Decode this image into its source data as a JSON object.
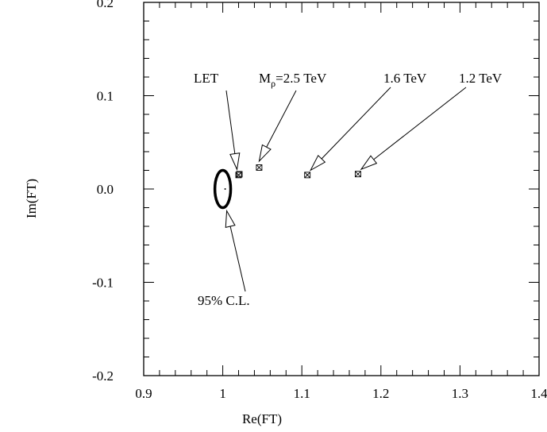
{
  "chart_data": {
    "type": "scatter",
    "xlabel": "Re(FT)",
    "ylabel": "Im(FT)",
    "xlim": [
      0.9,
      1.4
    ],
    "ylim": [
      -0.2,
      0.2
    ],
    "x_ticks": [
      "0.9",
      "1",
      "1.1",
      "1.2",
      "1.3",
      "1.4"
    ],
    "y_ticks": [
      "-0.2",
      "-0.1",
      "0.0",
      "0.1",
      "0.2"
    ],
    "grid": false,
    "points": [
      {
        "x": 1.02,
        "y": 0.015
      },
      {
        "x": 1.046,
        "y": 0.023
      },
      {
        "x": 1.107,
        "y": 0.015
      },
      {
        "x": 1.171,
        "y": 0.016
      }
    ],
    "ellipse": {
      "cx": 1.0,
      "cy": 0.0,
      "rx": 0.01,
      "ry": 0.02
    },
    "annotations": [
      {
        "text": "LET",
        "target": [
          1.02,
          0.015
        ]
      },
      {
        "text_main": "M",
        "text_sub": "ρ",
        "text_rest": "=2.5 TeV",
        "target": [
          1.046,
          0.023
        ]
      },
      {
        "text": "1.6 TeV",
        "target": [
          1.107,
          0.015
        ]
      },
      {
        "text": "1.2 TeV",
        "target": [
          1.171,
          0.016
        ]
      },
      {
        "text": "95% C.L.",
        "target": [
          1.003,
          -0.02
        ]
      }
    ]
  }
}
